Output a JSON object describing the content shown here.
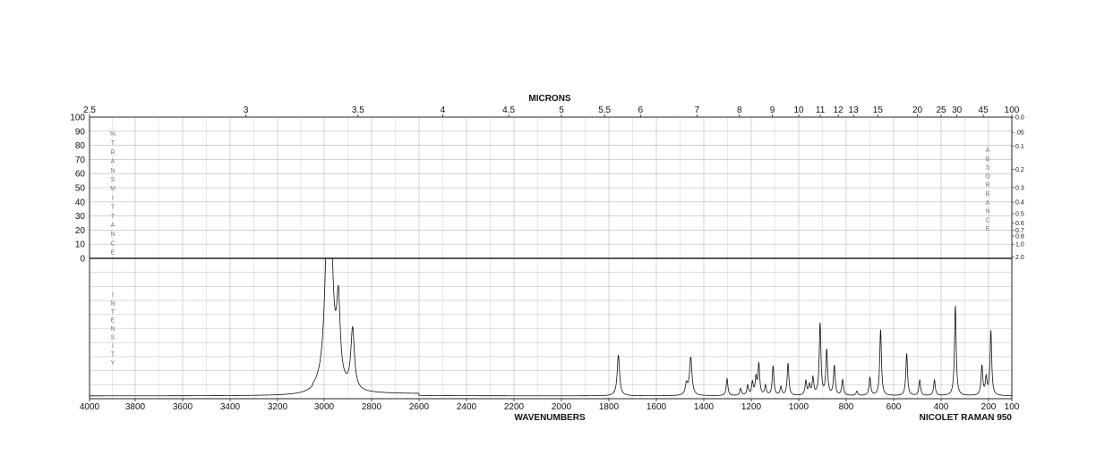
{
  "chart_data": {
    "type": "line",
    "title": "",
    "top_axis": {
      "label": "MICRONS",
      "ticks": [
        "2.5",
        "3",
        "3.5",
        "4",
        "4.5",
        "5",
        "5.5",
        "6",
        "7",
        "8",
        "9",
        "10",
        "11",
        "12",
        "13",
        "15",
        "20",
        "25",
        "30",
        "45",
        "100"
      ],
      "tick_values": [
        2.5,
        3,
        3.5,
        4,
        4.5,
        5,
        5.5,
        6,
        7,
        8,
        9,
        10,
        11,
        12,
        13,
        15,
        20,
        25,
        30,
        45,
        100
      ]
    },
    "bottom_axis": {
      "label": "WAVENUMBERS",
      "ticks": [
        "4000",
        "3800",
        "3600",
        "3400",
        "3200",
        "3000",
        "2800",
        "2600",
        "2400",
        "2200",
        "2000",
        "1800",
        "1600",
        "1400",
        "1200",
        "1000",
        "800",
        "600",
        "400",
        "200",
        "100"
      ],
      "tick_values": [
        4000,
        3800,
        3600,
        3400,
        3200,
        3000,
        2800,
        2600,
        2400,
        2200,
        2000,
        1800,
        1600,
        1400,
        1200,
        1000,
        800,
        600,
        400,
        200,
        100
      ],
      "xlim": [
        4000,
        100
      ]
    },
    "left_axis": {
      "ticks": [
        "100",
        "90",
        "80",
        "70",
        "60",
        "50",
        "40",
        "30",
        "20",
        "10",
        "0"
      ],
      "tick_values": [
        100,
        90,
        80,
        70,
        60,
        50,
        40,
        30,
        20,
        10,
        0
      ]
    },
    "right_axis": {
      "ticks": [
        "0.0",
        ".05",
        "0.1",
        "0.2",
        "0.3",
        "0.4",
        "0.5",
        "0.6",
        "0.7",
        "0.8",
        "1.0",
        "2.0"
      ],
      "tick_values": [
        0.0,
        0.05,
        0.1,
        0.2,
        0.3,
        0.4,
        0.5,
        0.6,
        0.7,
        0.8,
        1.0,
        2.0
      ]
    },
    "upper_panel_label": "%TRANSMITTANCE",
    "upper_panel_right_label": "ABSORBANCE",
    "lower_panel_label": "INTENSITY",
    "instrument": "NICOLET RAMAN 950",
    "grid": true,
    "ylim": [
      0,
      100
    ],
    "series": [
      {
        "baseline": 2,
        "peaks": [
          {
            "x": 2984,
            "y": 96
          },
          {
            "x": 2975,
            "y": 90
          },
          {
            "x": 2940,
            "y": 57
          },
          {
            "x": 2880,
            "y": 45
          },
          {
            "x": 1760,
            "y": 31
          },
          {
            "x": 1473,
            "y": 10
          },
          {
            "x": 1455,
            "y": 29
          },
          {
            "x": 1302,
            "y": 14
          },
          {
            "x": 1245,
            "y": 7
          },
          {
            "x": 1215,
            "y": 9
          },
          {
            "x": 1195,
            "y": 11
          },
          {
            "x": 1180,
            "y": 14
          },
          {
            "x": 1168,
            "y": 24
          },
          {
            "x": 1140,
            "y": 9
          },
          {
            "x": 1108,
            "y": 23
          },
          {
            "x": 1075,
            "y": 8
          },
          {
            "x": 1045,
            "y": 25
          },
          {
            "x": 970,
            "y": 12
          },
          {
            "x": 955,
            "y": 9
          },
          {
            "x": 940,
            "y": 14
          },
          {
            "x": 910,
            "y": 53
          },
          {
            "x": 882,
            "y": 34
          },
          {
            "x": 850,
            "y": 23
          },
          {
            "x": 815,
            "y": 13
          },
          {
            "x": 755,
            "y": 5
          },
          {
            "x": 700,
            "y": 15
          },
          {
            "x": 655,
            "y": 49
          },
          {
            "x": 545,
            "y": 32
          },
          {
            "x": 490,
            "y": 13
          },
          {
            "x": 428,
            "y": 13
          },
          {
            "x": 340,
            "y": 66
          },
          {
            "x": 228,
            "y": 23
          },
          {
            "x": 210,
            "y": 14
          },
          {
            "x": 190,
            "y": 48
          }
        ]
      }
    ]
  }
}
